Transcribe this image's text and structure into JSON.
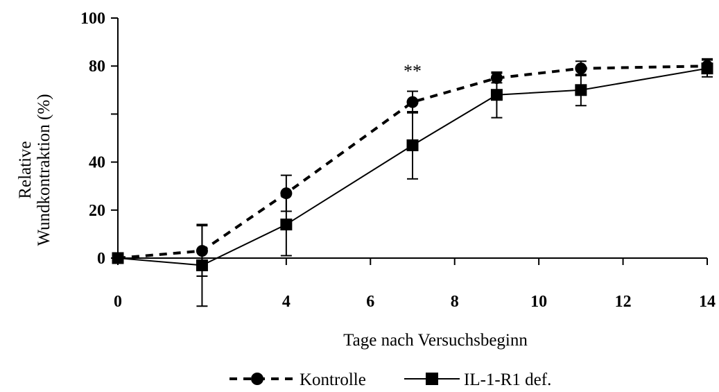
{
  "chart_data": {
    "type": "line",
    "xlabel": "Tage nach Versuchsbeginn",
    "ylabel_lines": [
      "Relative",
      "Wundkontraktion (%)"
    ],
    "xlim": [
      0,
      14
    ],
    "ylim": [
      0,
      100
    ],
    "xticks": [
      0,
      2,
      4,
      6,
      8,
      10,
      12,
      14
    ],
    "xtick_labels": [
      "0",
      "",
      "4",
      "6",
      "8",
      "10",
      "12",
      "14"
    ],
    "yticks": [
      0,
      20,
      40,
      60,
      80,
      100
    ],
    "ytick_labels": [
      "0",
      "20",
      "40",
      "",
      "80",
      "100"
    ],
    "grid": false,
    "legend_position": "bottom",
    "annotation": {
      "text": "**",
      "x": 7,
      "y": 78
    },
    "series": [
      {
        "name": "Kontrolle",
        "style": "dashed",
        "marker": "circle",
        "color": "#000000",
        "x": [
          0,
          2,
          4,
          7,
          9,
          11,
          14
        ],
        "y": [
          0,
          3,
          27,
          65,
          75,
          79,
          80
        ],
        "err": [
          0,
          10.5,
          7.5,
          4.5,
          2,
          3,
          3
        ]
      },
      {
        "name": "IL-1-R1 def.",
        "style": "solid",
        "marker": "square",
        "color": "#000000",
        "x": [
          0,
          2,
          4,
          7,
          9,
          11,
          14
        ],
        "y": [
          0,
          -3,
          14,
          47,
          68,
          70,
          79
        ],
        "err": [
          0,
          17,
          13,
          14,
          9.5,
          6.5,
          3.5
        ]
      }
    ]
  }
}
